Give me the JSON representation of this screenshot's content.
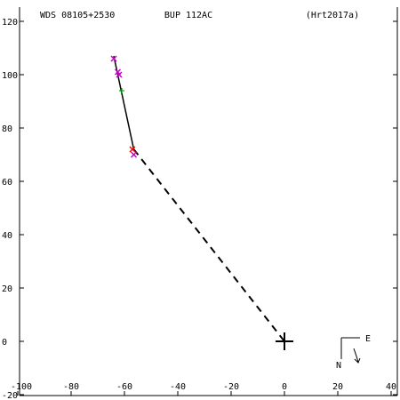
{
  "header": {
    "left": "WDS 08105+2530",
    "center": "BUP 112AC",
    "right": "(Hrt2017a)"
  },
  "compass": {
    "east": "E",
    "north": "N"
  },
  "colors": {
    "background": "#ffffff",
    "axis": "#000000",
    "orbit": "#000000",
    "observation_magenta": "#cc00cc",
    "observation_red": "#ff0000",
    "observation_green": "#00aa00"
  },
  "chart_data": {
    "type": "scatter",
    "title": "",
    "xlabel": "",
    "ylabel": "",
    "xlim": [
      -100,
      45
    ],
    "ylim": [
      -20,
      125
    ],
    "x_ticks": [
      -100,
      -80,
      -60,
      -40,
      -20,
      0,
      20,
      40
    ],
    "y_ticks": [
      -20,
      0,
      20,
      40,
      60,
      80,
      100,
      120
    ],
    "tick_labels_x": [
      "-100",
      "-80",
      "-60",
      "-40",
      "-20",
      "0",
      "20",
      "40"
    ],
    "tick_labels_y": [
      "-20",
      "0",
      "20",
      "40",
      "60",
      "80",
      "100",
      "120"
    ],
    "primary_star": {
      "x": 0,
      "y": 0
    },
    "solid_segment": [
      {
        "x": -64,
        "y": 107
      },
      {
        "x": -56.5,
        "y": 72
      }
    ],
    "dashed_segment": [
      {
        "x": -56.5,
        "y": 72
      },
      {
        "x": 0,
        "y": 0
      }
    ],
    "observations": [
      {
        "x": -64,
        "y": 106,
        "color": "#cc00cc",
        "marker": "x"
      },
      {
        "x": -62.5,
        "y": 101,
        "color": "#cc00cc",
        "marker": "x"
      },
      {
        "x": -62,
        "y": 100,
        "color": "#cc00cc",
        "marker": "x"
      },
      {
        "x": -61,
        "y": 94,
        "color": "#00aa00",
        "marker": "plus"
      },
      {
        "x": -57,
        "y": 72,
        "color": "#ff0000",
        "marker": "x"
      },
      {
        "x": -56.5,
        "y": 70,
        "color": "#cc00cc",
        "marker": "x"
      }
    ]
  }
}
